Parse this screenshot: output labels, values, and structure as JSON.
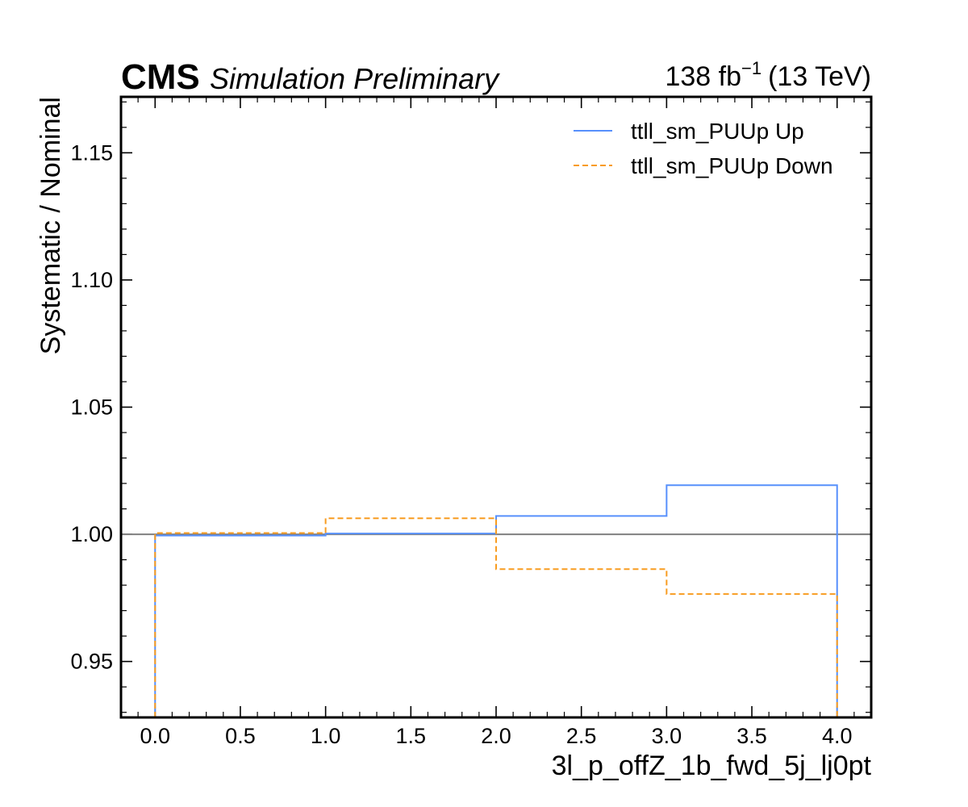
{
  "chart_data": {
    "type": "line",
    "header": {
      "experiment": "CMS",
      "status": "Simulation Preliminary",
      "lumi_value": "138 fb",
      "lumi_exponent": "−1",
      "energy": "(13 TeV)"
    },
    "xlabel": "3l_p_offZ_1b_fwd_5j_lj0pt",
    "ylabel": "Systematic / Nominal",
    "xlim": [
      -0.2,
      4.2
    ],
    "ylim": [
      0.928,
      1.172
    ],
    "xticks": [
      0.0,
      0.5,
      1.0,
      1.5,
      2.0,
      2.5,
      3.0,
      3.5,
      4.0
    ],
    "xtick_labels": [
      "0.0",
      "0.5",
      "1.0",
      "1.5",
      "2.0",
      "2.5",
      "3.0",
      "3.5",
      "4.0"
    ],
    "yticks": [
      0.95,
      1.0,
      1.05,
      1.1,
      1.15
    ],
    "ytick_labels": [
      "0.95",
      "1.00",
      "1.05",
      "1.10",
      "1.15"
    ],
    "reference_line": {
      "y": 1.0,
      "color": "#808080"
    },
    "bin_edges": [
      0,
      1,
      2,
      3,
      4
    ],
    "series": [
      {
        "name": "ttll_sm_PUUp Up",
        "values": [
          0.9995,
          1.0003,
          1.0072,
          1.0193
        ],
        "color": "#5790fc",
        "style": "solid"
      },
      {
        "name": "ttll_sm_PUUp Down",
        "values": [
          1.0005,
          1.0063,
          0.9863,
          0.9765
        ],
        "color": "#f89c20",
        "style": "dashed"
      }
    ],
    "legend_position": "top-right",
    "grid": false
  }
}
